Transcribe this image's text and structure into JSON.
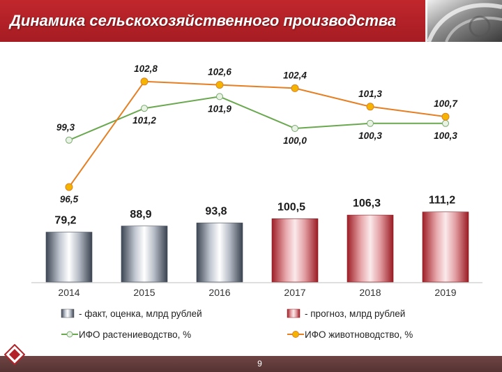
{
  "slide": {
    "title": "Динамика сельскохозяйственного производства",
    "page_number": "9"
  },
  "colors": {
    "header": "#b32229",
    "footer": "#5e3b3a",
    "crop_line": "#6aa84f",
    "livestock_line": "#e67e22",
    "marker_fill": "#f5b400",
    "fact_bar": "#8a94a3",
    "forecast_bar": "#c93a44"
  },
  "chart_data": {
    "type": "bar+line",
    "categories": [
      "2014",
      "2015",
      "2016",
      "2017",
      "2018",
      "2019"
    ],
    "bars": {
      "values": [
        79.2,
        88.9,
        93.8,
        100.5,
        106.3,
        111.2
      ],
      "labels": [
        "79,2",
        "88,9",
        "93,8",
        "100,5",
        "106,3",
        "111,2"
      ],
      "status": [
        "fact",
        "fact",
        "fact",
        "forecast",
        "forecast",
        "forecast"
      ]
    },
    "series": [
      {
        "name": "ИФО растениеводство,  %",
        "values": [
          99.3,
          101.2,
          101.9,
          100.0,
          100.3,
          100.3
        ],
        "labels": [
          "99,3",
          "101,2",
          "101,9",
          "100,0",
          "100,3",
          "100,3"
        ]
      },
      {
        "name": "ИФО животноводство,  %",
        "values": [
          96.5,
          102.8,
          102.6,
          102.4,
          101.3,
          100.7
        ],
        "labels": [
          "96,5",
          "102,8",
          "102,6",
          "102,4",
          "101,3",
          "100,7"
        ]
      }
    ],
    "legend": {
      "fact": "- факт,  оценка,  млрд рублей",
      "forecast": "- прогноз,  млрд рублей",
      "crop": "ИФО растениеводство,  %",
      "livestock": "ИФО животноводство,  %"
    },
    "line_range": [
      96,
      103.5
    ],
    "bar_range": [
      0,
      130
    ]
  }
}
